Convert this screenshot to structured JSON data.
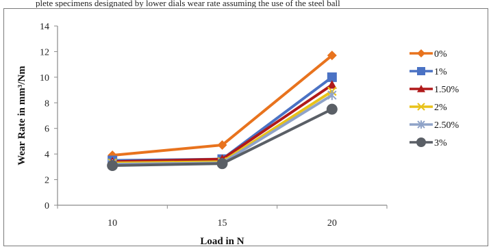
{
  "caption": "plete specimens designated by lower dials wear rate assuming the use of the steel ball",
  "chart_data": {
    "type": "line",
    "title": "",
    "xlabel": "Load in N",
    "ylabel": "Wear Rate in mm³/Nm",
    "categories": [
      "10",
      "15",
      "20"
    ],
    "ylim": [
      0,
      14
    ],
    "yticks": [
      0,
      2,
      4,
      6,
      8,
      10,
      12,
      14
    ],
    "grid": false,
    "legend_position": "right",
    "series": [
      {
        "name": "0%",
        "values": [
          3.9,
          4.7,
          11.7
        ],
        "color": "#E8731E",
        "marker": "diamond"
      },
      {
        "name": "1%",
        "values": [
          3.5,
          3.6,
          10.0
        ],
        "color": "#4A72C4",
        "marker": "square"
      },
      {
        "name": "1.50%",
        "values": [
          3.4,
          3.6,
          9.4
        ],
        "color": "#B0191A",
        "marker": "triangle"
      },
      {
        "name": "2%",
        "values": [
          3.3,
          3.4,
          8.9
        ],
        "color": "#E8C21A",
        "marker": "x"
      },
      {
        "name": "2.50%",
        "values": [
          3.2,
          3.3,
          8.6
        ],
        "color": "#8FA3C8",
        "marker": "star"
      },
      {
        "name": "3%",
        "values": [
          3.1,
          3.25,
          7.5
        ],
        "color": "#5A5F66",
        "marker": "circle"
      }
    ]
  }
}
